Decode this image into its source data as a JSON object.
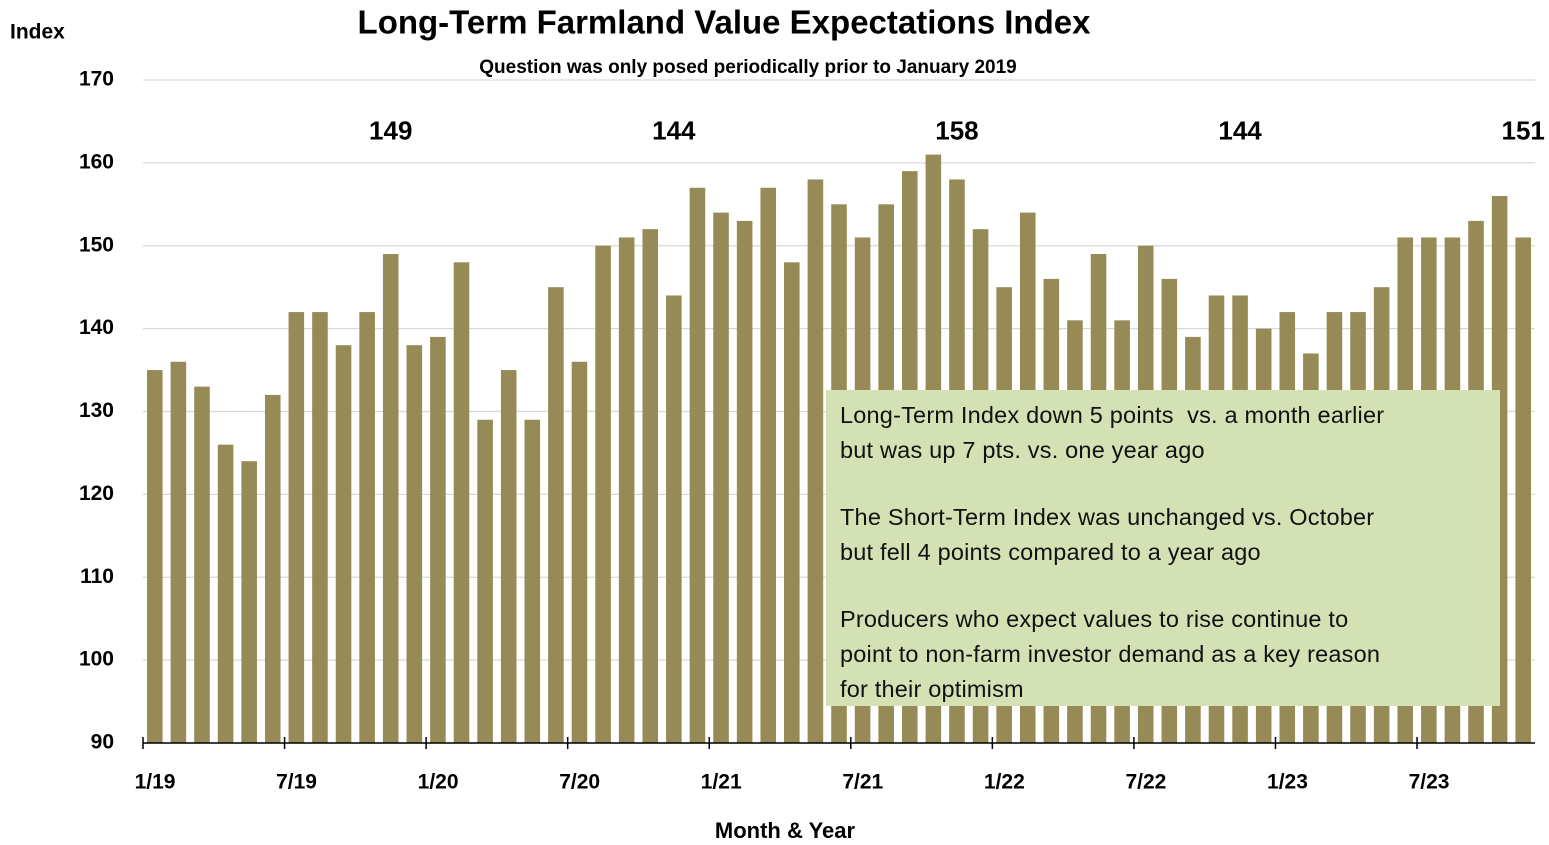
{
  "chart_data": {
    "type": "bar",
    "title": "Long-Term Farmland Value Expectations Index",
    "subtitle": "Question was only posed periodically prior to January 2019",
    "y_axis_label": "Index",
    "x_axis_label": "Month & Year",
    "color": "#968a56",
    "categories": [
      "1/19",
      null,
      null,
      null,
      null,
      null,
      "7/19",
      null,
      null,
      null,
      null,
      null,
      "1/20",
      null,
      null,
      null,
      null,
      null,
      "7/20",
      null,
      null,
      null,
      null,
      null,
      "1/21",
      null,
      null,
      null,
      null,
      null,
      "7/21",
      null,
      null,
      null,
      null,
      null,
      "1/22",
      null,
      null,
      null,
      null,
      null,
      "7/22",
      null,
      null,
      null,
      null,
      null,
      "1/23",
      null,
      null,
      null,
      null,
      null,
      "7/23",
      null,
      null,
      null,
      null
    ],
    "values": [
      135,
      136,
      133,
      126,
      124,
      132,
      142,
      142,
      138,
      142,
      149,
      138,
      139,
      148,
      129,
      135,
      129,
      145,
      136,
      150,
      151,
      152,
      144,
      157,
      154,
      153,
      157,
      148,
      158,
      155,
      151,
      155,
      159,
      161,
      158,
      152,
      145,
      154,
      146,
      141,
      149,
      141,
      150,
      146,
      139,
      144,
      144,
      140,
      142,
      137,
      142,
      142,
      145,
      151,
      151,
      151,
      153,
      156,
      151
    ],
    "value_labels": [
      null,
      null,
      null,
      null,
      null,
      null,
      null,
      null,
      null,
      null,
      "149",
      null,
      null,
      null,
      null,
      null,
      null,
      null,
      null,
      null,
      null,
      null,
      "144",
      null,
      null,
      null,
      null,
      null,
      null,
      null,
      null,
      null,
      null,
      null,
      "158",
      null,
      null,
      null,
      null,
      null,
      null,
      null,
      null,
      null,
      null,
      null,
      "144",
      null,
      null,
      null,
      null,
      null,
      null,
      null,
      null,
      null,
      null,
      null,
      "151"
    ],
    "ylim": [
      90,
      170
    ],
    "yticks": [
      90,
      100,
      110,
      120,
      130,
      140,
      150,
      160,
      170
    ],
    "grid": true,
    "annotation": [
      [
        "Long-Term Index down 5 points  vs. a month earlier",
        "but was up 7 pts. vs. one year ago"
      ],
      [
        "The Short-Term Index was unchanged vs. October",
        "but fell 4 points compared to a year ago"
      ],
      [
        "Producers who expect values to rise continue to",
        "point to non-farm investor demand as a key reason",
        "for their optimism"
      ]
    ]
  }
}
